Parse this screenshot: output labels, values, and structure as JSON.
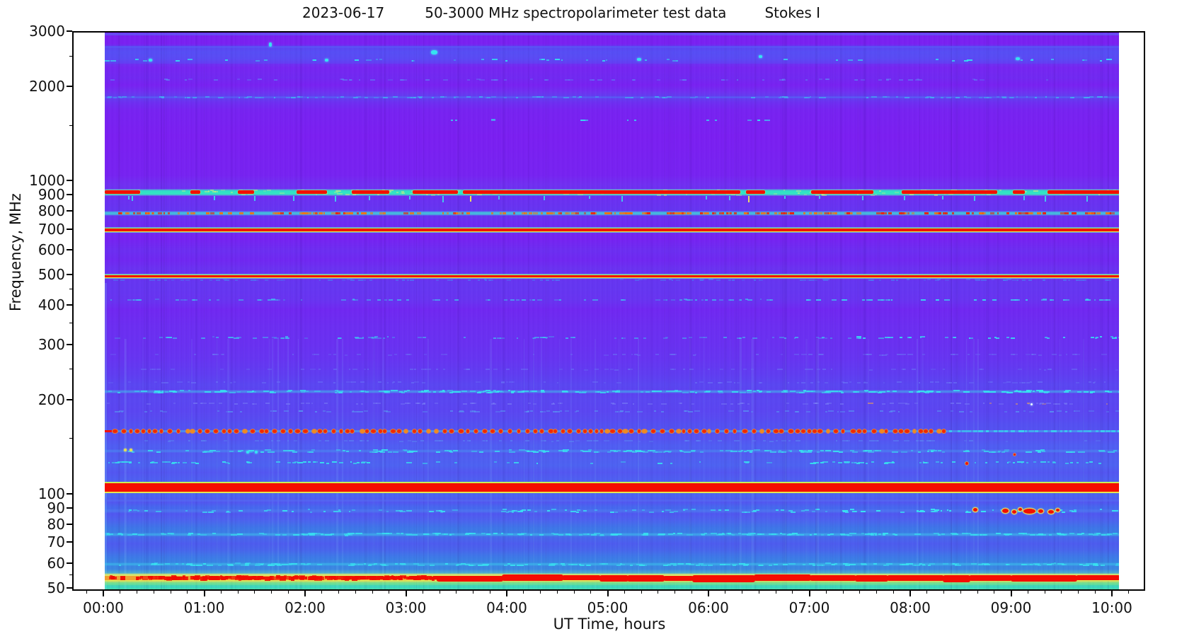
{
  "title": {
    "date": "2023-06-17",
    "main": "50-3000 MHz spectropolarimeter test data",
    "stokes": "Stokes I"
  },
  "axes": {
    "x_label": "UT Time, hours",
    "y_label": "Frequency, MHz",
    "x_ticks": [
      {
        "t": 0,
        "label": "00:00"
      },
      {
        "t": 1,
        "label": "01:00"
      },
      {
        "t": 2,
        "label": "02:00"
      },
      {
        "t": 3,
        "label": "03:00"
      },
      {
        "t": 4,
        "label": "04:00"
      },
      {
        "t": 5,
        "label": "05:00"
      },
      {
        "t": 6,
        "label": "06:00"
      },
      {
        "t": 7,
        "label": "07:00"
      },
      {
        "t": 8,
        "label": "08:00"
      },
      {
        "t": 9,
        "label": "09:00"
      },
      {
        "t": 10,
        "label": "10:00"
      }
    ],
    "y_ticks_major": [
      {
        "f": 3000,
        "label": "3000"
      },
      {
        "f": 2000,
        "label": "2000"
      },
      {
        "f": 1000,
        "label": "1000"
      },
      {
        "f": 900,
        "label": "900"
      },
      {
        "f": 800,
        "label": "800"
      },
      {
        "f": 700,
        "label": "700"
      },
      {
        "f": 600,
        "label": "600"
      },
      {
        "f": 500,
        "label": "500"
      },
      {
        "f": 400,
        "label": "400"
      },
      {
        "f": 300,
        "label": "300"
      },
      {
        "f": 200,
        "label": "200"
      },
      {
        "f": 100,
        "label": "100"
      },
      {
        "f": 90,
        "label": "90"
      },
      {
        "f": 80,
        "label": "80"
      },
      {
        "f": 70,
        "label": "70"
      },
      {
        "f": 60,
        "label": "60"
      },
      {
        "f": 50,
        "label": "50"
      }
    ],
    "y_ticks_minor": [
      2500,
      1500,
      450,
      350,
      250,
      150,
      55
    ],
    "x_minor_per_hour": 6
  },
  "chart_data": {
    "type": "heatmap",
    "subtype": "dynamic radio spectrum, Stokes I intensity",
    "x_range_hours": [
      0,
      10.06
    ],
    "x_axis_extent_hours": [
      -0.32,
      10.32
    ],
    "y_range_mhz": [
      50,
      3000
    ],
    "y_scale": "log",
    "colormap": "rainbow (violet=low, cyan/green=mid, yellow/red=high)",
    "background_base": "#7a21f1",
    "background_stops": [
      [
        3000,
        "#7a21f1"
      ],
      [
        2970,
        "#6c34f1"
      ],
      [
        2945,
        "#7a21f1"
      ],
      [
        2760,
        "#7a21f1"
      ],
      [
        2700,
        "#6239f1"
      ],
      [
        2600,
        "#5a48f2"
      ],
      [
        2480,
        "#5f43f2"
      ],
      [
        2400,
        "#6c32f1"
      ],
      [
        2320,
        "#7626f1"
      ],
      [
        2150,
        "#7129f1"
      ],
      [
        2040,
        "#7822f1"
      ],
      [
        1940,
        "#7030f1"
      ],
      [
        1862,
        "#6041f0"
      ],
      [
        1800,
        "#6d30f1"
      ],
      [
        1690,
        "#7723f1"
      ],
      [
        1400,
        "#7b1ff1"
      ],
      [
        1050,
        "#7723f1"
      ],
      [
        980,
        "#7030f1"
      ],
      [
        900,
        "#6c30f1"
      ],
      [
        850,
        "#6932f1"
      ],
      [
        800,
        "#6536f1"
      ],
      [
        755,
        "#6c2ef1"
      ],
      [
        705,
        "#7127f1"
      ],
      [
        650,
        "#7524f1"
      ],
      [
        600,
        "#6c2ef1"
      ],
      [
        560,
        "#7028f1"
      ],
      [
        530,
        "#6b31f1"
      ],
      [
        495,
        "#6635f1"
      ],
      [
        460,
        "#6536f1"
      ],
      [
        420,
        "#6834f1"
      ],
      [
        390,
        "#7028f1"
      ],
      [
        345,
        "#6c2ef1"
      ],
      [
        300,
        "#6931f1"
      ],
      [
        270,
        "#6635f1"
      ],
      [
        240,
        "#5f3ef1"
      ],
      [
        225,
        "#5a46f1"
      ],
      [
        210,
        "#5d42f1"
      ],
      [
        200,
        "#5a47f1"
      ],
      [
        188,
        "#5b45f1"
      ],
      [
        176,
        "#584af1"
      ],
      [
        168,
        "#5450f1"
      ],
      [
        158,
        "#5552f1"
      ],
      [
        150,
        "#5455f1"
      ],
      [
        143,
        "#4f5ef2"
      ],
      [
        136,
        "#525af1"
      ],
      [
        130,
        "#4f5ff1"
      ],
      [
        124,
        "#4d62f1"
      ],
      [
        118,
        "#5356f1"
      ],
      [
        113,
        "#4f5ef1"
      ],
      [
        108,
        "#4e60f1"
      ],
      [
        103,
        "#4b66f0"
      ],
      [
        99,
        "#4d62f0"
      ],
      [
        95,
        "#5257f0"
      ],
      [
        91,
        "#4569ee"
      ],
      [
        87,
        "#5158f0"
      ],
      [
        83,
        "#4c63ee"
      ],
      [
        79,
        "#3f74e8"
      ],
      [
        76,
        "#3b7de6"
      ],
      [
        73,
        "#4767ec"
      ],
      [
        70,
        "#4d5cee"
      ],
      [
        67,
        "#4964ec"
      ],
      [
        64,
        "#3f76e8"
      ],
      [
        61,
        "#3884e4"
      ],
      [
        58,
        "#3b86e2"
      ],
      [
        56,
        "#55b8c8"
      ],
      [
        55.3,
        "#9fdc7a"
      ],
      [
        54.8,
        "#d8e85e"
      ],
      [
        52.9,
        "#e8d44c"
      ],
      [
        52.5,
        "#7adf86"
      ],
      [
        51.6,
        "#44d8ae"
      ],
      [
        50.8,
        "#3cd4c4"
      ],
      [
        50,
        "#46dcaa"
      ]
    ],
    "bands": [
      {
        "f": 2960,
        "style": "faint",
        "h": 3,
        "color": "rgba(88,108,246,0.5)"
      },
      {
        "f": 2700,
        "style": "faint",
        "h": 3,
        "color": "rgba(96,96,246,0.45)"
      },
      {
        "f1": 2720,
        "f2": 2390,
        "style": "wash",
        "color": "rgba(78,92,248,0.30)"
      },
      {
        "f": 2450,
        "style": "dash",
        "h": 4,
        "color": "#35dff0",
        "density": 0.22,
        "amin": 0.3,
        "amax": 0.95
      },
      {
        "f": 2120,
        "style": "dash",
        "h": 3,
        "color": "#5f82f6",
        "density": 0.3,
        "amin": 0.3,
        "amax": 0.7
      },
      {
        "f": 1862,
        "style": "dash",
        "h": 3,
        "color": "#46a8f2",
        "density": 0.55,
        "amin": 0.35,
        "amax": 0.9,
        "base": "rgba(80,120,246,0.5)"
      },
      {
        "f": 1575,
        "style": "dash",
        "h": 3,
        "color": "#35dff0",
        "density": 0.5,
        "amin": 0.4,
        "amax": 0.9,
        "segments": [
          [
            3.4,
            3.6
          ],
          [
            3.75,
            3.85
          ],
          [
            4.55,
            4.8
          ],
          [
            5.15,
            5.35
          ],
          [
            5.85,
            6.05
          ],
          [
            6.3,
            6.55
          ]
        ]
      },
      {
        "f": 938,
        "style": "mainband"
      },
      {
        "f": 792,
        "style": "orangeband"
      },
      {
        "f": 701,
        "style": "redline",
        "h": 6,
        "edge_top": "#8fe878",
        "edge_bottom": "#dcec56"
      },
      {
        "f": 500,
        "style": "redline",
        "h": 5,
        "edge_top": "#9aec6e",
        "edge_bottom": "#e4e850"
      },
      {
        "f": 486,
        "style": "dash",
        "h": 3,
        "color": "#4a7cf4",
        "density": 0.45,
        "amin": 0.3,
        "amax": 0.8
      },
      {
        "f": 420,
        "style": "dash",
        "h": 3,
        "color": "#3ccff0",
        "density": 0.5,
        "amin": 0.25,
        "amax": 0.7,
        "bright": [
          6.6,
          10.06
        ]
      },
      {
        "f": 318,
        "style": "dash",
        "h": 4,
        "color": "#3ccff0",
        "density": 0.5,
        "amin": 0.25,
        "amax": 0.7,
        "bright": [
          7.4,
          10.06
        ]
      },
      {
        "f": 281,
        "style": "dash",
        "h": 3,
        "color": "#6a78f6",
        "density": 0.3,
        "amin": 0.25,
        "amax": 0.55
      },
      {
        "f": 252,
        "style": "dash",
        "h": 3,
        "color": "#6a78f6",
        "density": 0.3,
        "amin": 0.25,
        "amax": 0.55
      },
      {
        "f": 229,
        "style": "dash",
        "h": 3,
        "color": "#6a78f6",
        "density": 0.35,
        "amin": 0.25,
        "amax": 0.6
      },
      {
        "f": 214,
        "style": "cyan",
        "h": 5,
        "density": 0.8,
        "bright": [
          7.9,
          10.06
        ]
      },
      {
        "f": 196,
        "style": "dash",
        "h": 3,
        "color": "#7a80f6",
        "density": 0.4,
        "amin": 0.3,
        "amax": 0.6,
        "orange_right": true
      },
      {
        "f": 185,
        "style": "dash",
        "h": 3,
        "color": "#57a0f2",
        "density": 0.4,
        "amin": 0.3,
        "amax": 0.65
      },
      {
        "f": 160,
        "style": "dotted"
      },
      {
        "f": 149,
        "style": "dash",
        "h": 3,
        "color": "#5b8ff2",
        "density": 0.35,
        "amin": 0.25,
        "amax": 0.55
      },
      {
        "f": 138,
        "style": "cyan",
        "h": 5,
        "density": 0.7,
        "base": "rgba(70,160,240,0.4)"
      },
      {
        "f": 127,
        "style": "dash",
        "h": 4,
        "color": "#38d8ee",
        "density": 0.6,
        "amin": 0.4,
        "amax": 0.95,
        "segments": [
          [
            0,
            2.6
          ],
          [
            6.9,
            10.06
          ]
        ],
        "sparse": 0.15
      },
      {
        "f1": 110.5,
        "f2": 101.5,
        "style": "fmblock"
      },
      {
        "f": 96,
        "style": "faint",
        "h": 3,
        "color": "rgba(86,110,242,0.45)"
      },
      {
        "f": 89,
        "style": "dash",
        "h": 6,
        "color": "#3ae0f2",
        "density": 0.55,
        "amin": 0.35,
        "amax": 0.95,
        "base": "rgba(80,150,240,0.3)",
        "bright": [
          7.2,
          10.06
        ]
      },
      {
        "f": 75,
        "style": "cyan",
        "h": 5,
        "density": 0.8
      },
      {
        "f": 60,
        "style": "cyan",
        "h": 5,
        "density": 0.8
      },
      {
        "f1": 55.4,
        "f2": 52.7,
        "style": "bottomband"
      }
    ],
    "main_band_red_segments_hours": [
      [
        0,
        0.35
      ],
      [
        0.85,
        0.95
      ],
      [
        1.32,
        1.48
      ],
      [
        1.9,
        2.2
      ],
      [
        2.45,
        2.82
      ],
      [
        3.05,
        3.5
      ],
      [
        3.55,
        6.3
      ],
      [
        6.36,
        6.55
      ],
      [
        7.0,
        7.62
      ],
      [
        7.9,
        8.85
      ],
      [
        9.0,
        9.12
      ],
      [
        9.35,
        10.06
      ]
    ],
    "spurs_below_main_band_hours": {
      "t": [
        0.23,
        0.27,
        1.08,
        1.48,
        1.87,
        2.28,
        2.62,
        3.02,
        3.35,
        3.62,
        3.9,
        4.35,
        4.8,
        5.12,
        5.96,
        6.19,
        6.38,
        6.74,
        7.08,
        7.51,
        7.92,
        8.3,
        8.62,
        9.11,
        9.32,
        9.73
      ],
      "yellow": [
        3.62,
        6.38
      ]
    },
    "bottom_band_solid_red_from_hour": 3.3,
    "bottom_band_dense_red_range_hours": [
      2.3,
      3.3
    ],
    "fm_blobs": [
      {
        "t": 8.63,
        "f": 90,
        "w": 6,
        "h": 5
      },
      {
        "t": 8.93,
        "f": 89,
        "w": 9,
        "h": 6
      },
      {
        "t": 9.02,
        "f": 88.5,
        "w": 6,
        "h": 5
      },
      {
        "t": 9.08,
        "f": 90.2,
        "w": 5,
        "h": 4
      },
      {
        "t": 9.17,
        "f": 88.8,
        "w": 17,
        "h": 7
      },
      {
        "t": 9.28,
        "f": 89,
        "w": 7,
        "h": 5
      },
      {
        "t": 9.38,
        "f": 88.6,
        "w": 8,
        "h": 5
      },
      {
        "t": 9.45,
        "f": 89.6,
        "w": 5,
        "h": 4
      }
    ],
    "red_dots": [
      {
        "t": 8.55,
        "f": 126,
        "w": 4,
        "h": 4
      },
      {
        "t": 9.02,
        "f": 135,
        "w": 3,
        "h": 3
      }
    ],
    "cyan_specks": [
      {
        "t": 1.64,
        "f": 2745,
        "w": 4,
        "h": 6
      },
      {
        "t": 3.27,
        "f": 2590,
        "w": 9,
        "h": 6
      },
      {
        "t": 0.45,
        "f": 2455,
        "w": 5,
        "h": 4
      },
      {
        "t": 2.2,
        "f": 2452,
        "w": 5,
        "h": 4
      },
      {
        "t": 5.3,
        "f": 2465,
        "w": 6,
        "h": 4
      },
      {
        "t": 6.5,
        "f": 2520,
        "w": 5,
        "h": 4
      },
      {
        "t": 9.05,
        "f": 2480,
        "w": 6,
        "h": 4
      },
      {
        "t": 1.42,
        "f": 137,
        "w": 4,
        "h": 4
      },
      {
        "t": 1.5,
        "f": 137,
        "w": 4,
        "h": 4
      }
    ],
    "yellow_dots": [
      {
        "t": 0.2,
        "f": 139
      },
      {
        "t": 0.26,
        "f": 139
      }
    ],
    "white_dot": {
      "t": 9.19,
      "f": 195
    }
  }
}
